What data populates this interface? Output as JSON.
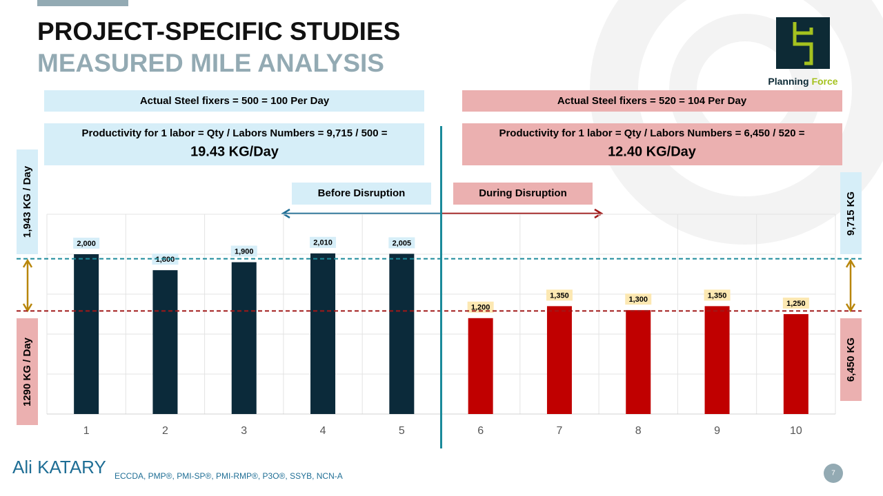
{
  "slide": {
    "title": "PROJECT-SPECIFIC STUDIES",
    "subtitle": "MEASURED MILE ANALYSIS",
    "logo": {
      "word1": "Planning",
      "word2": "Force"
    },
    "before": {
      "fixers": "Actual Steel fixers = 500 = 100 Per Day",
      "formula": "Productivity for 1 labor = Qty / Labors Numbers = 9,715 / 500 =",
      "result": "19.43 KG/Day",
      "phase": "Before Disruption",
      "total": "9,715 KG"
    },
    "during": {
      "fixers": "Actual Steel fixers = 520 = 104 Per Day",
      "formula": "Productivity for 1 labor = Qty / Labors Numbers = 6,450 / 520 =",
      "result": "12.40 KG/Day",
      "phase": "During Disruption",
      "total": "6,450 KG"
    },
    "author": "Ali KATARY",
    "credentials": "ECCDA,  PMP®,  PMI-SP®,  PMI-RMP®,  P3O®, SSYB,  NCN-A",
    "page": "7"
  },
  "chart_data": {
    "type": "bar",
    "categories": [
      "1",
      "2",
      "3",
      "4",
      "5",
      "6",
      "7",
      "8",
      "9",
      "10"
    ],
    "values": [
      2000,
      1800,
      1900,
      2010,
      2005,
      1200,
      1350,
      1300,
      1350,
      1250
    ],
    "value_labels": [
      "2,000",
      "1,800",
      "1,900",
      "2,010",
      "2,005",
      "1,200",
      "1,350",
      "1,300",
      "1,350",
      "1,250"
    ],
    "colors": [
      "#0b2a3a",
      "#0b2a3a",
      "#0b2a3a",
      "#0b2a3a",
      "#0b2a3a",
      "#c00000",
      "#c00000",
      "#c00000",
      "#c00000",
      "#c00000"
    ],
    "label_fills": [
      "#d6eef8",
      "#d6eef8",
      "#d6eef8",
      "#d6eef8",
      "#d6eef8",
      "#fce8b2",
      "#fce8b2",
      "#fce8b2",
      "#fce8b2",
      "#fce8b2"
    ],
    "ylim": [
      0,
      2500
    ],
    "ygrid": [
      500,
      1000,
      1500,
      2000,
      2500
    ],
    "grid": true,
    "reference_lines": [
      {
        "value": 1943,
        "label": "1,943 KG / Day",
        "color": "#1a8a9a"
      },
      {
        "value": 1290,
        "label": "1290 KG / Day",
        "color": "#a01818"
      }
    ]
  }
}
